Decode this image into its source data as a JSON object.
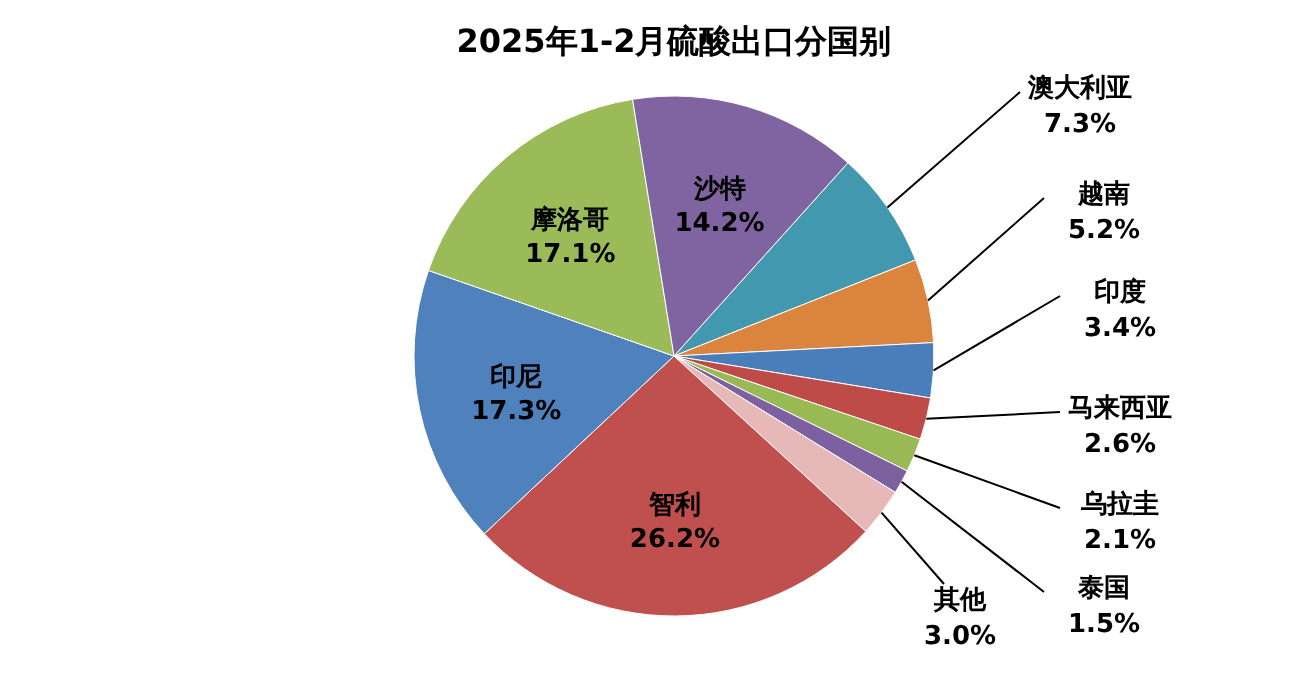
{
  "chart_data": {
    "type": "pie",
    "title": "2025年1-2月硫酸出口分国别",
    "categories": [
      "澳大利亚",
      "越南",
      "印度",
      "马来西亚",
      "乌拉圭",
      "泰国",
      "其他",
      "智利",
      "印尼",
      "摩洛哥",
      "沙特"
    ],
    "values": [
      7.3,
      5.2,
      3.4,
      2.6,
      2.1,
      1.5,
      3.0,
      26.2,
      17.3,
      17.1,
      14.2
    ],
    "value_labels": [
      "7.3%",
      "5.2%",
      "3.4%",
      "2.6%",
      "2.1%",
      "1.5%",
      "3.0%",
      "26.2%",
      "17.3%",
      "17.1%",
      "14.2%"
    ],
    "colors": [
      "#4198af",
      "#db843d",
      "#4a7ebb",
      "#be4b48",
      "#98b954",
      "#7d60a0",
      "#e6b9b8",
      "#c0504d",
      "#4f81bd",
      "#9bbb59",
      "#8064a2"
    ]
  }
}
